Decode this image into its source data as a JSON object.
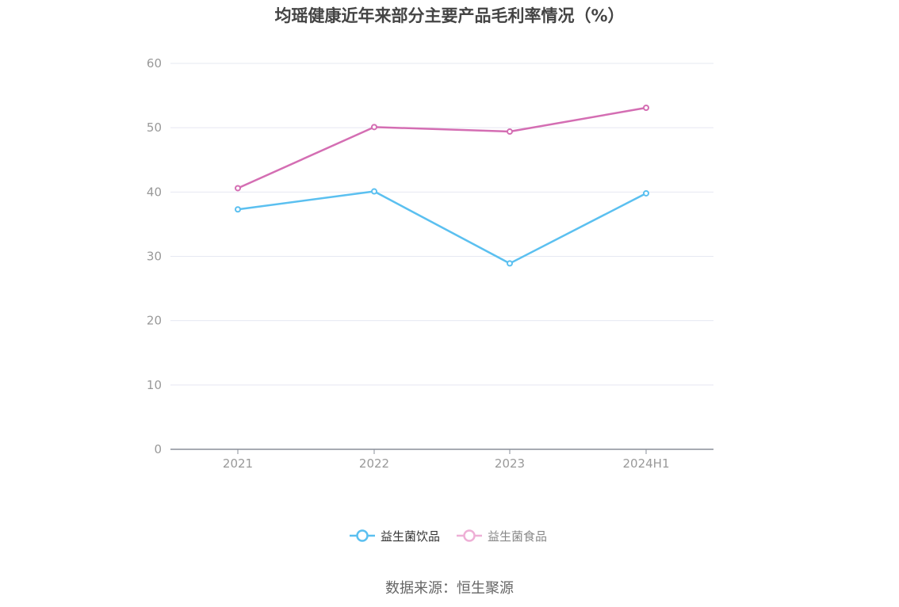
{
  "chart_data": {
    "type": "line",
    "title": "均瑶健康近年来部分主要产品毛利率情况（%）",
    "categories": [
      "2021",
      "2022",
      "2023",
      "2024H1"
    ],
    "series": [
      {
        "name": "益生菌饮品",
        "color": "#5bc0f0",
        "values": [
          37.3,
          40.1,
          28.9,
          39.8
        ]
      },
      {
        "name": "益生菌食品",
        "color": "#d46eb3",
        "values": [
          40.6,
          50.1,
          49.4,
          53.1
        ]
      }
    ],
    "ylim": [
      0,
      60
    ],
    "yticks": [
      "0",
      "10",
      "20",
      "30",
      "40",
      "50",
      "60"
    ],
    "grid": true,
    "legend_position": "bottom-center"
  },
  "source_text": "数据来源：恒生聚源"
}
